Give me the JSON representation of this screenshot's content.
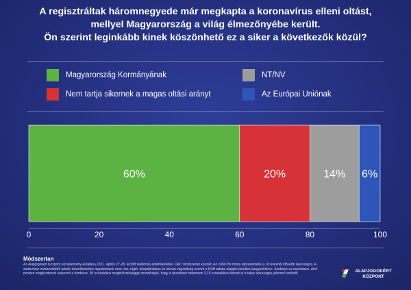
{
  "title_lines": [
    "A regisztráltak háromnegyede már megkapta a koronavírus elleni oltást,",
    "mellyel Magyarország a világ élmezőnyébe került.",
    "Ön szerint leginkább kinek köszönhető ez a siker a következők közül?"
  ],
  "chart_data": {
    "type": "bar",
    "orientation": "horizontal-stacked",
    "series": [
      {
        "name": "Magyarország Kormányának",
        "value": 60,
        "label": "60%",
        "color": "#5cb342"
      },
      {
        "name": "Nem tartja sikernek a magas oltási arányt",
        "value": 20,
        "label": "20%",
        "color": "#d63238"
      },
      {
        "name": "NT/NV",
        "value": 14,
        "label": "14%",
        "color": "#9d9d9d"
      },
      {
        "name": "Az Európai Uniónak",
        "value": 6,
        "label": "6%",
        "color": "#2d56b8"
      }
    ],
    "xlim": [
      0,
      100
    ],
    "xticks": [
      "0",
      "20",
      "40",
      "60",
      "80",
      "100"
    ],
    "legend_order": [
      0,
      2,
      1,
      3
    ],
    "legend_position": "top"
  },
  "methodology": {
    "heading": "Módszertan",
    "text": "Az Alapjogokért Központ közvélemény-kutatása 2021. április 27-28. között telefonos adatfelvétellel, CATI módszerrel készült. Az 1000 fős minta reprezentatív a 18 évesnél idősebb lakosságra. A statisztikai mintavételből adódó elkerülhetetlen ingadozások nem, kor, régió, településtípus és iskolai végzettség szerint a KSH adatai alapján kerültek kiegyenlítésre. Azokban az esetekben, ahol minden megkérdezett válaszolt a kérdésre, 95 százalékos megbízhatósággal mondhatjuk, hogy a becslések maximum 3,16 százalékkal térnek el a teljes sokaságra jellemző értéktől."
  },
  "logo": {
    "line1": "ALAPJOGOKÉRT",
    "line2": "KÖZPONT",
    "colors": [
      "#d63238",
      "#ffffff",
      "#5cb342"
    ]
  }
}
